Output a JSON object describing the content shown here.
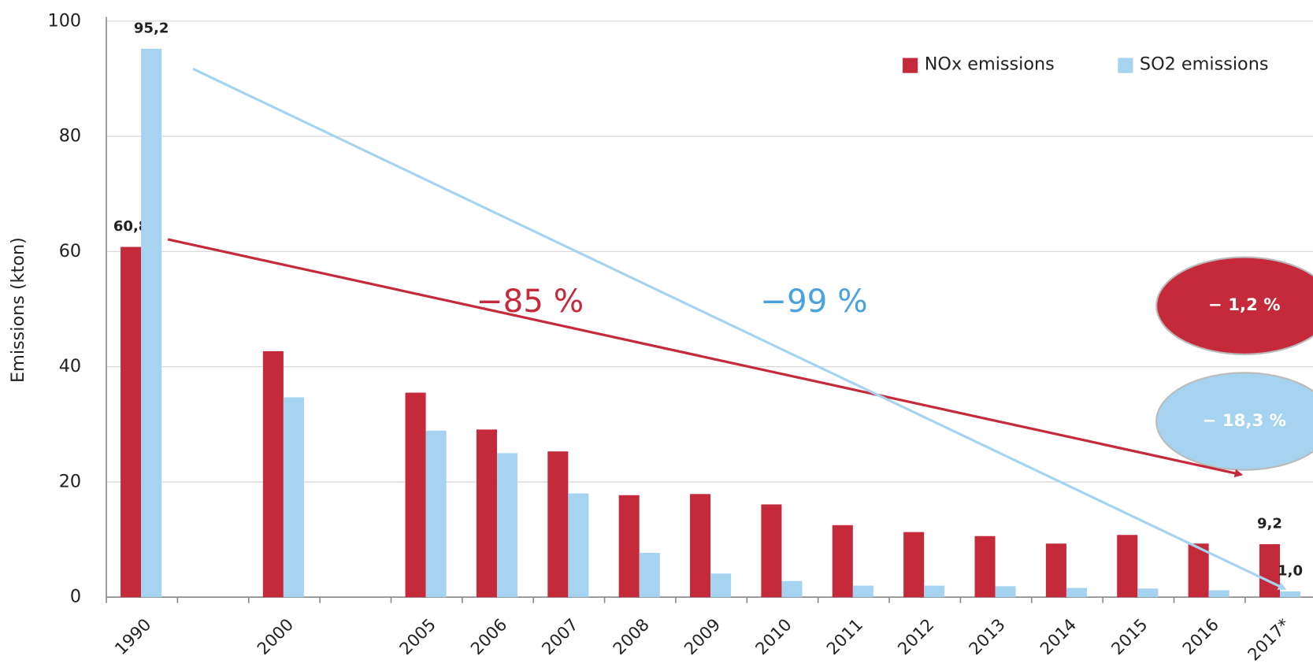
{
  "chart_data": {
    "type": "bar",
    "y_label": "Emissions (kton)",
    "categories": [
      "1990",
      null,
      "2000",
      null,
      "2005",
      "2006",
      "2007",
      "2008",
      "2009",
      "2010",
      "2011",
      "2012",
      "2013",
      "2014",
      "2015",
      "2016",
      "2017*"
    ],
    "series": [
      {
        "name": "NOx emissions",
        "color": "#c52a3a",
        "values": [
          60.8,
          null,
          42.7,
          null,
          35.5,
          29.1,
          25.3,
          17.7,
          17.9,
          16.1,
          12.5,
          11.3,
          10.6,
          9.3,
          10.8,
          9.3,
          9.2
        ],
        "value_labels": [
          "60,8",
          null,
          null,
          null,
          null,
          null,
          null,
          null,
          null,
          null,
          null,
          null,
          null,
          null,
          null,
          null,
          "9,2"
        ]
      },
      {
        "name": "SO2 emissions",
        "color": "#a6d3f0",
        "values": [
          95.2,
          null,
          34.7,
          null,
          28.9,
          25.0,
          18.0,
          7.7,
          4.1,
          2.8,
          2.0,
          2.0,
          1.9,
          1.6,
          1.5,
          1.2,
          1.0
        ],
        "value_labels": [
          "95,2",
          null,
          null,
          null,
          null,
          null,
          null,
          null,
          null,
          null,
          null,
          null,
          null,
          null,
          null,
          null,
          "1,0"
        ]
      }
    ],
    "ylim": [
      0,
      100
    ],
    "yticks": [
      0,
      20,
      40,
      60,
      80,
      100
    ],
    "grid": true,
    "legend": "top-right",
    "annotations": {
      "nox_change": "−85 %",
      "so2_change": "−99 %",
      "nox_last_year": "− 1,2 %",
      "so2_last_year": "− 18,3 %"
    }
  }
}
